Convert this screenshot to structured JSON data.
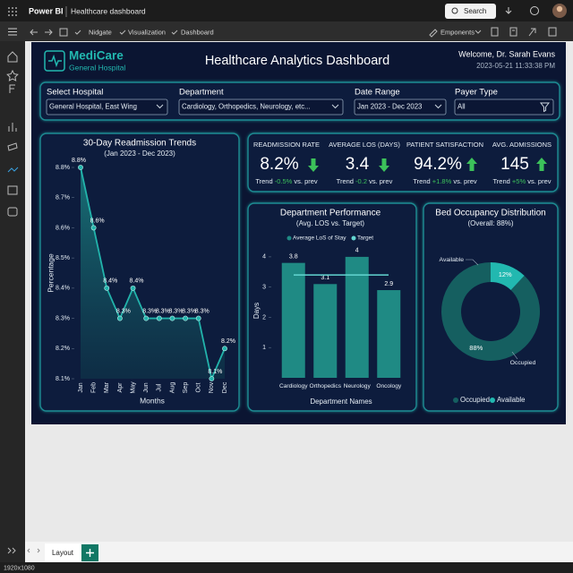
{
  "app": {
    "name": "Power BI",
    "document": "Healthcare dashboard",
    "search": "Search",
    "breadcrumbs": [
      "Nidgate",
      "Visualization",
      "Dashboard"
    ],
    "toolbar_menu": "Emponents",
    "page_tab": "Layout",
    "resolution": "1920x1080"
  },
  "header": {
    "logo": "MediCare",
    "logo_subtitle": "General Hospital",
    "title": "Healthcare Analytics Dashboard",
    "welcome": "Welcome, Dr. Sarah Evans",
    "timestamp": "2023-05-21 11:33:38 PM"
  },
  "filters": [
    {
      "label": "Select Hospital",
      "value": "General Hospital, East Wing"
    },
    {
      "label": "Department",
      "value": "Cardiology, Orthopedics, Neurology, etc..."
    },
    {
      "label": "Date Range",
      "value": "Jan 2023 - Dec 2023"
    },
    {
      "label": "Payer Type",
      "value": "All"
    }
  ],
  "kpis": [
    {
      "label": "READMISSION RATE",
      "value": "8.2%",
      "direction": "down",
      "trend_label": "Trend",
      "trend": "-0.5%",
      "trend_suffix": "vs. prev"
    },
    {
      "label": "AVERAGE LOS (DAYS)",
      "value": "3.4",
      "direction": "down",
      "trend_label": "Trend",
      "trend": "-0.2",
      "trend_suffix": "vs. prev"
    },
    {
      "label": "PATIENT SATISFACTION",
      "value": "94.2%",
      "direction": "up",
      "trend_label": "Trend",
      "trend": "+1.8%",
      "trend_suffix": "vs. prev"
    },
    {
      "label": "AVG. ADMISSIONS",
      "value": "145",
      "direction": "up",
      "trend_label": "Trend",
      "trend": "+5%",
      "trend_suffix": "vs. prev"
    }
  ],
  "chart_data": [
    {
      "type": "line",
      "title": "30-Day Readmission Trends",
      "subtitle": "(Jan 2023 - Dec 2023)",
      "x_label": "Months",
      "y_label": "Percentage",
      "categories": [
        "Jan",
        "Feb",
        "Mar",
        "Apr",
        "May",
        "Jun",
        "Jul",
        "Aug",
        "Sep",
        "Oct",
        "Nov",
        "Dec"
      ],
      "values": [
        8.8,
        8.6,
        8.4,
        8.3,
        8.4,
        8.3,
        8.3,
        8.3,
        8.3,
        8.3,
        8.1,
        8.2
      ],
      "value_labels": [
        "8.8%",
        "8.6%",
        "8.4%",
        "8.3%",
        "8.4%",
        "8.3%",
        "8.3%",
        "8.3%",
        "8.3%",
        "8.3%",
        "8.1%",
        "8.2%"
      ],
      "color": "#22b3ab",
      "ylim": [
        8.1,
        8.8
      ],
      "yticks": [
        {
          "value": 8.8,
          "label": "8.8%"
        },
        {
          "value": 8.7,
          "label": "8.7%"
        },
        {
          "value": 8.6,
          "label": "8.6%"
        },
        {
          "value": 8.5,
          "label": "8.5%"
        },
        {
          "value": 8.4,
          "label": "8.4%"
        },
        {
          "value": 8.3,
          "label": "8.3%"
        },
        {
          "value": 8.2,
          "label": "8.2%"
        },
        {
          "value": 8.1,
          "label": "8.1%"
        }
      ],
      "area": true
    },
    {
      "type": "bar",
      "title": "Department Performance",
      "subtitle": "(Avg. LOS vs. Target)",
      "x_label": "Department Names",
      "y_label": "Days",
      "categories": [
        "Cardiology",
        "Orthopedics",
        "Neurology",
        "Oncology"
      ],
      "series": [
        {
          "name": "Average LoS of Stay",
          "color": "#1f8a84",
          "values": [
            3.8,
            3.1,
            4.0,
            2.9
          ]
        }
      ],
      "target": {
        "name": "Target",
        "value": 3.4,
        "color": "#63d6d1"
      },
      "ylim": [
        0,
        4.5
      ],
      "yticks": [
        1,
        2,
        3,
        4
      ],
      "legend": "top"
    },
    {
      "type": "pie",
      "title": "Bed Occupancy Distribution",
      "subtitle": "(Overall: 88%)",
      "categories": [
        "Occupied",
        "Available"
      ],
      "values": [
        88,
        12
      ],
      "value_labels": [
        "88%",
        "12%"
      ],
      "colors": [
        "#155f60",
        "#22b8b0"
      ],
      "donut": true,
      "legend": "bottom"
    }
  ]
}
